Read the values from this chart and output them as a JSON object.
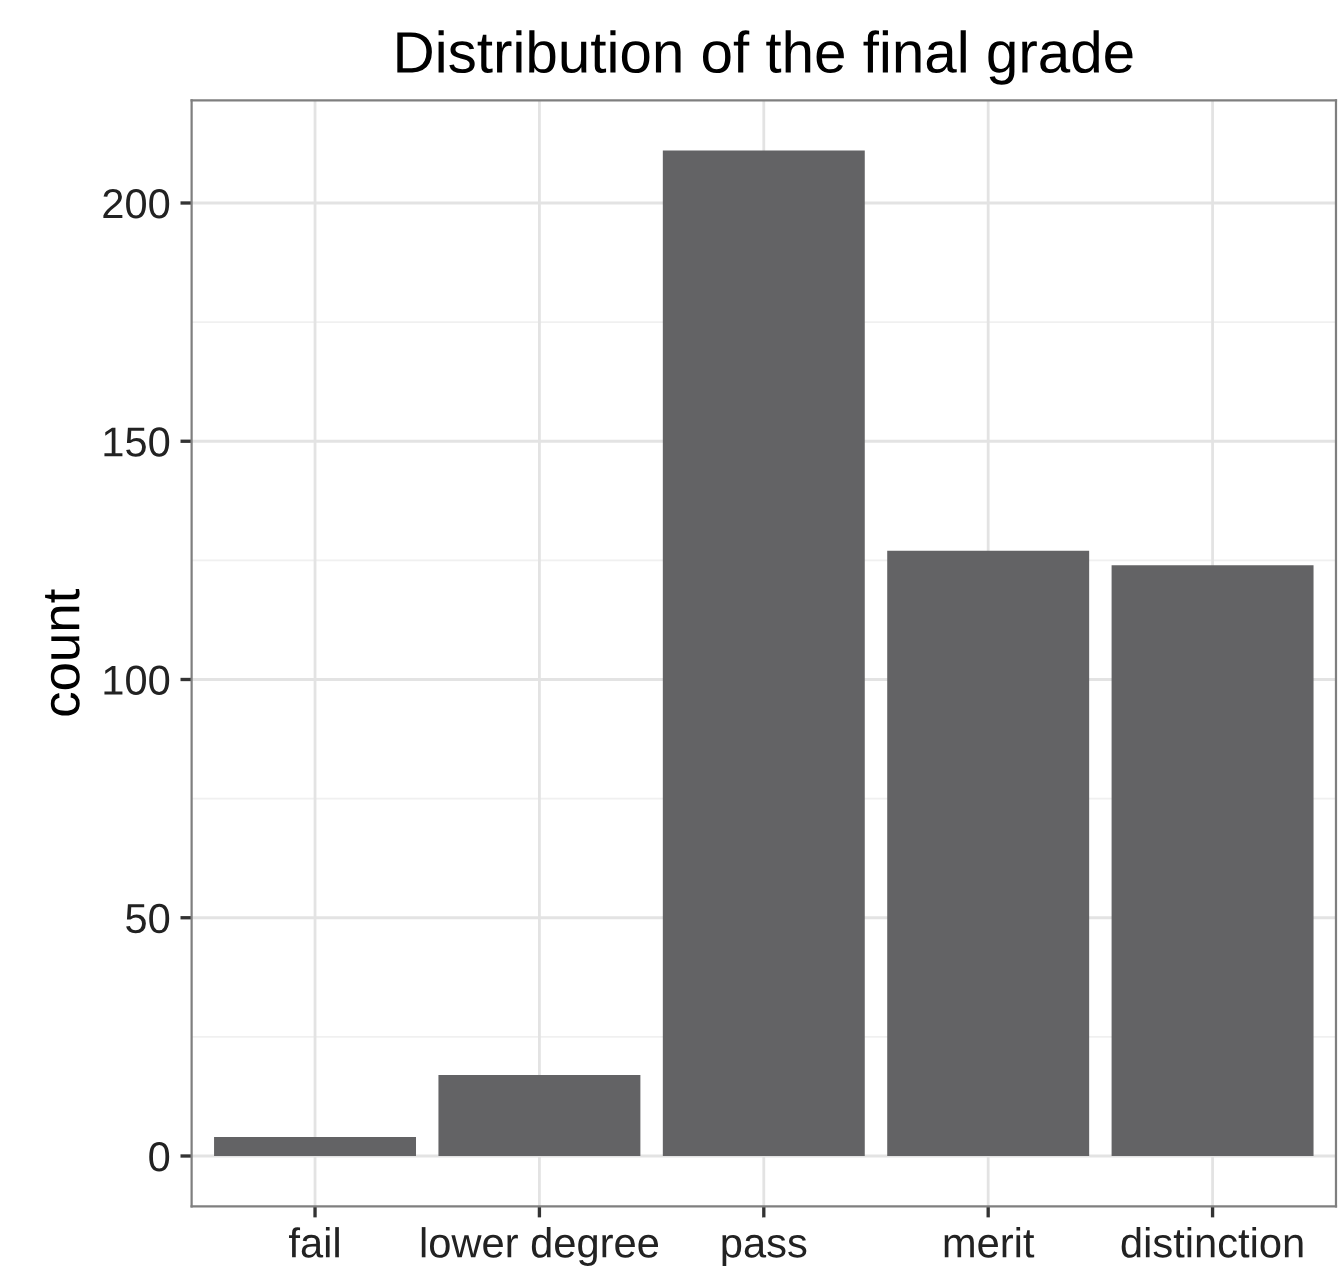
{
  "chart_data": {
    "type": "bar",
    "title": "Distribution of the final grade",
    "ylabel": "count",
    "categories": [
      "fail",
      "lower degree",
      "pass",
      "merit",
      "distinction"
    ],
    "values": [
      4,
      17,
      211,
      127,
      124
    ],
    "color": "#636365",
    "ylim": [
      -10.55,
      221.55
    ],
    "yticks": [
      0,
      50,
      100,
      150,
      200
    ],
    "grid": true,
    "legend": false
  }
}
